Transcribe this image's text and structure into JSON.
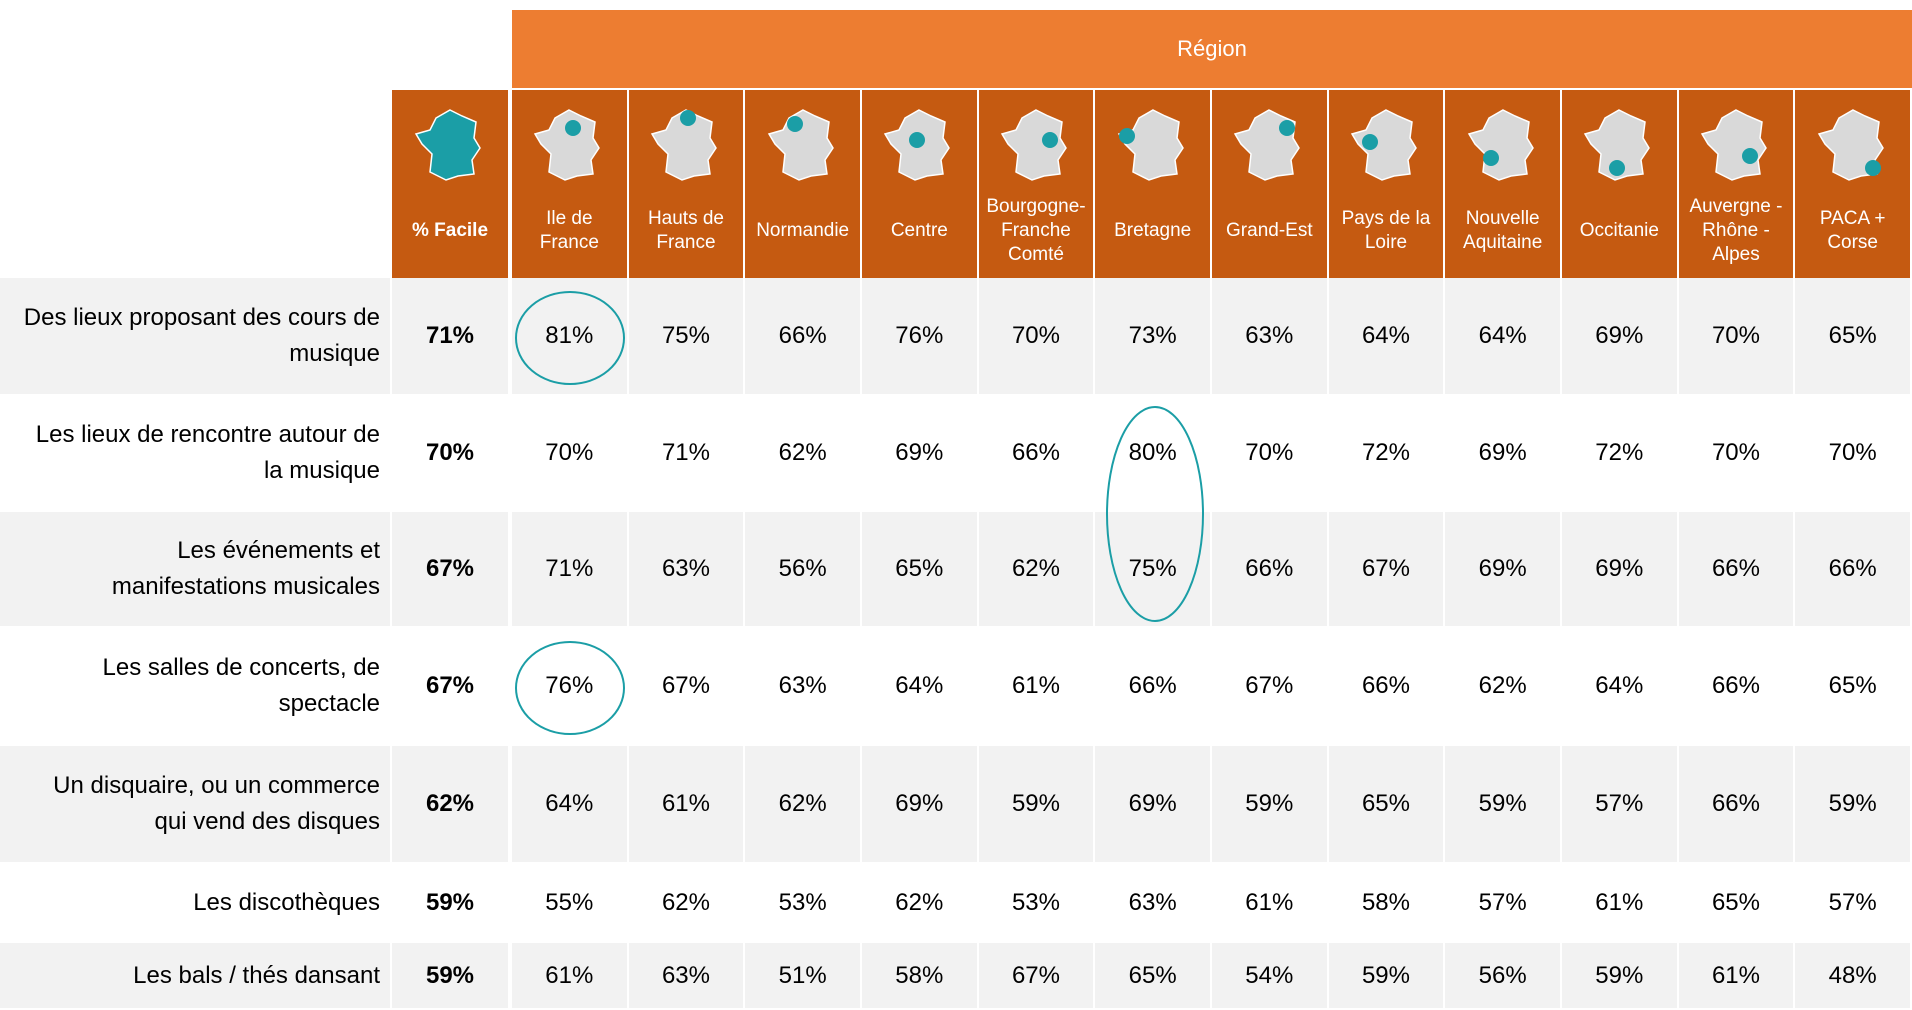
{
  "header": {
    "group": "Région",
    "total": "% Facile",
    "regions": [
      "Ile de France",
      "Hauts de France",
      "Normandie",
      "Centre",
      "Bourgogne-Franche Comté",
      "Bretagne",
      "Grand-Est",
      "Pays de la Loire",
      "Nouvelle Aquitaine",
      "Occitanie",
      "Auvergne - Rhône - Alpes",
      "PACA + Corse"
    ]
  },
  "rows": [
    {
      "label": "Des lieux proposant des cours de musique",
      "total": "71%",
      "values": [
        "81%",
        "75%",
        "66%",
        "76%",
        "70%",
        "73%",
        "63%",
        "64%",
        "64%",
        "69%",
        "70%",
        "65%"
      ]
    },
    {
      "label": "Les lieux de rencontre autour de la musique",
      "total": "70%",
      "values": [
        "70%",
        "71%",
        "62%",
        "69%",
        "66%",
        "80%",
        "70%",
        "72%",
        "69%",
        "72%",
        "70%",
        "70%"
      ]
    },
    {
      "label": "Les événements et manifestations musicales",
      "total": "67%",
      "values": [
        "71%",
        "63%",
        "56%",
        "65%",
        "62%",
        "75%",
        "66%",
        "67%",
        "69%",
        "69%",
        "66%",
        "66%"
      ]
    },
    {
      "label": "Les salles de concerts, de spectacle",
      "total": "67%",
      "values": [
        "76%",
        "67%",
        "63%",
        "64%",
        "61%",
        "66%",
        "67%",
        "66%",
        "62%",
        "64%",
        "66%",
        "65%"
      ]
    },
    {
      "label": "Un disquaire, ou un commerce qui vend des disques",
      "total": "62%",
      "values": [
        "64%",
        "61%",
        "62%",
        "69%",
        "59%",
        "69%",
        "59%",
        "65%",
        "59%",
        "57%",
        "66%",
        "59%"
      ]
    },
    {
      "label": "Les discothèques",
      "total": "59%",
      "values": [
        "55%",
        "62%",
        "53%",
        "62%",
        "53%",
        "63%",
        "61%",
        "58%",
        "57%",
        "61%",
        "65%",
        "57%"
      ]
    },
    {
      "label": "Les bals / thés dansant",
      "total": "59%",
      "values": [
        "61%",
        "63%",
        "51%",
        "58%",
        "67%",
        "65%",
        "54%",
        "59%",
        "56%",
        "59%",
        "61%",
        "48%"
      ]
    }
  ]
}
